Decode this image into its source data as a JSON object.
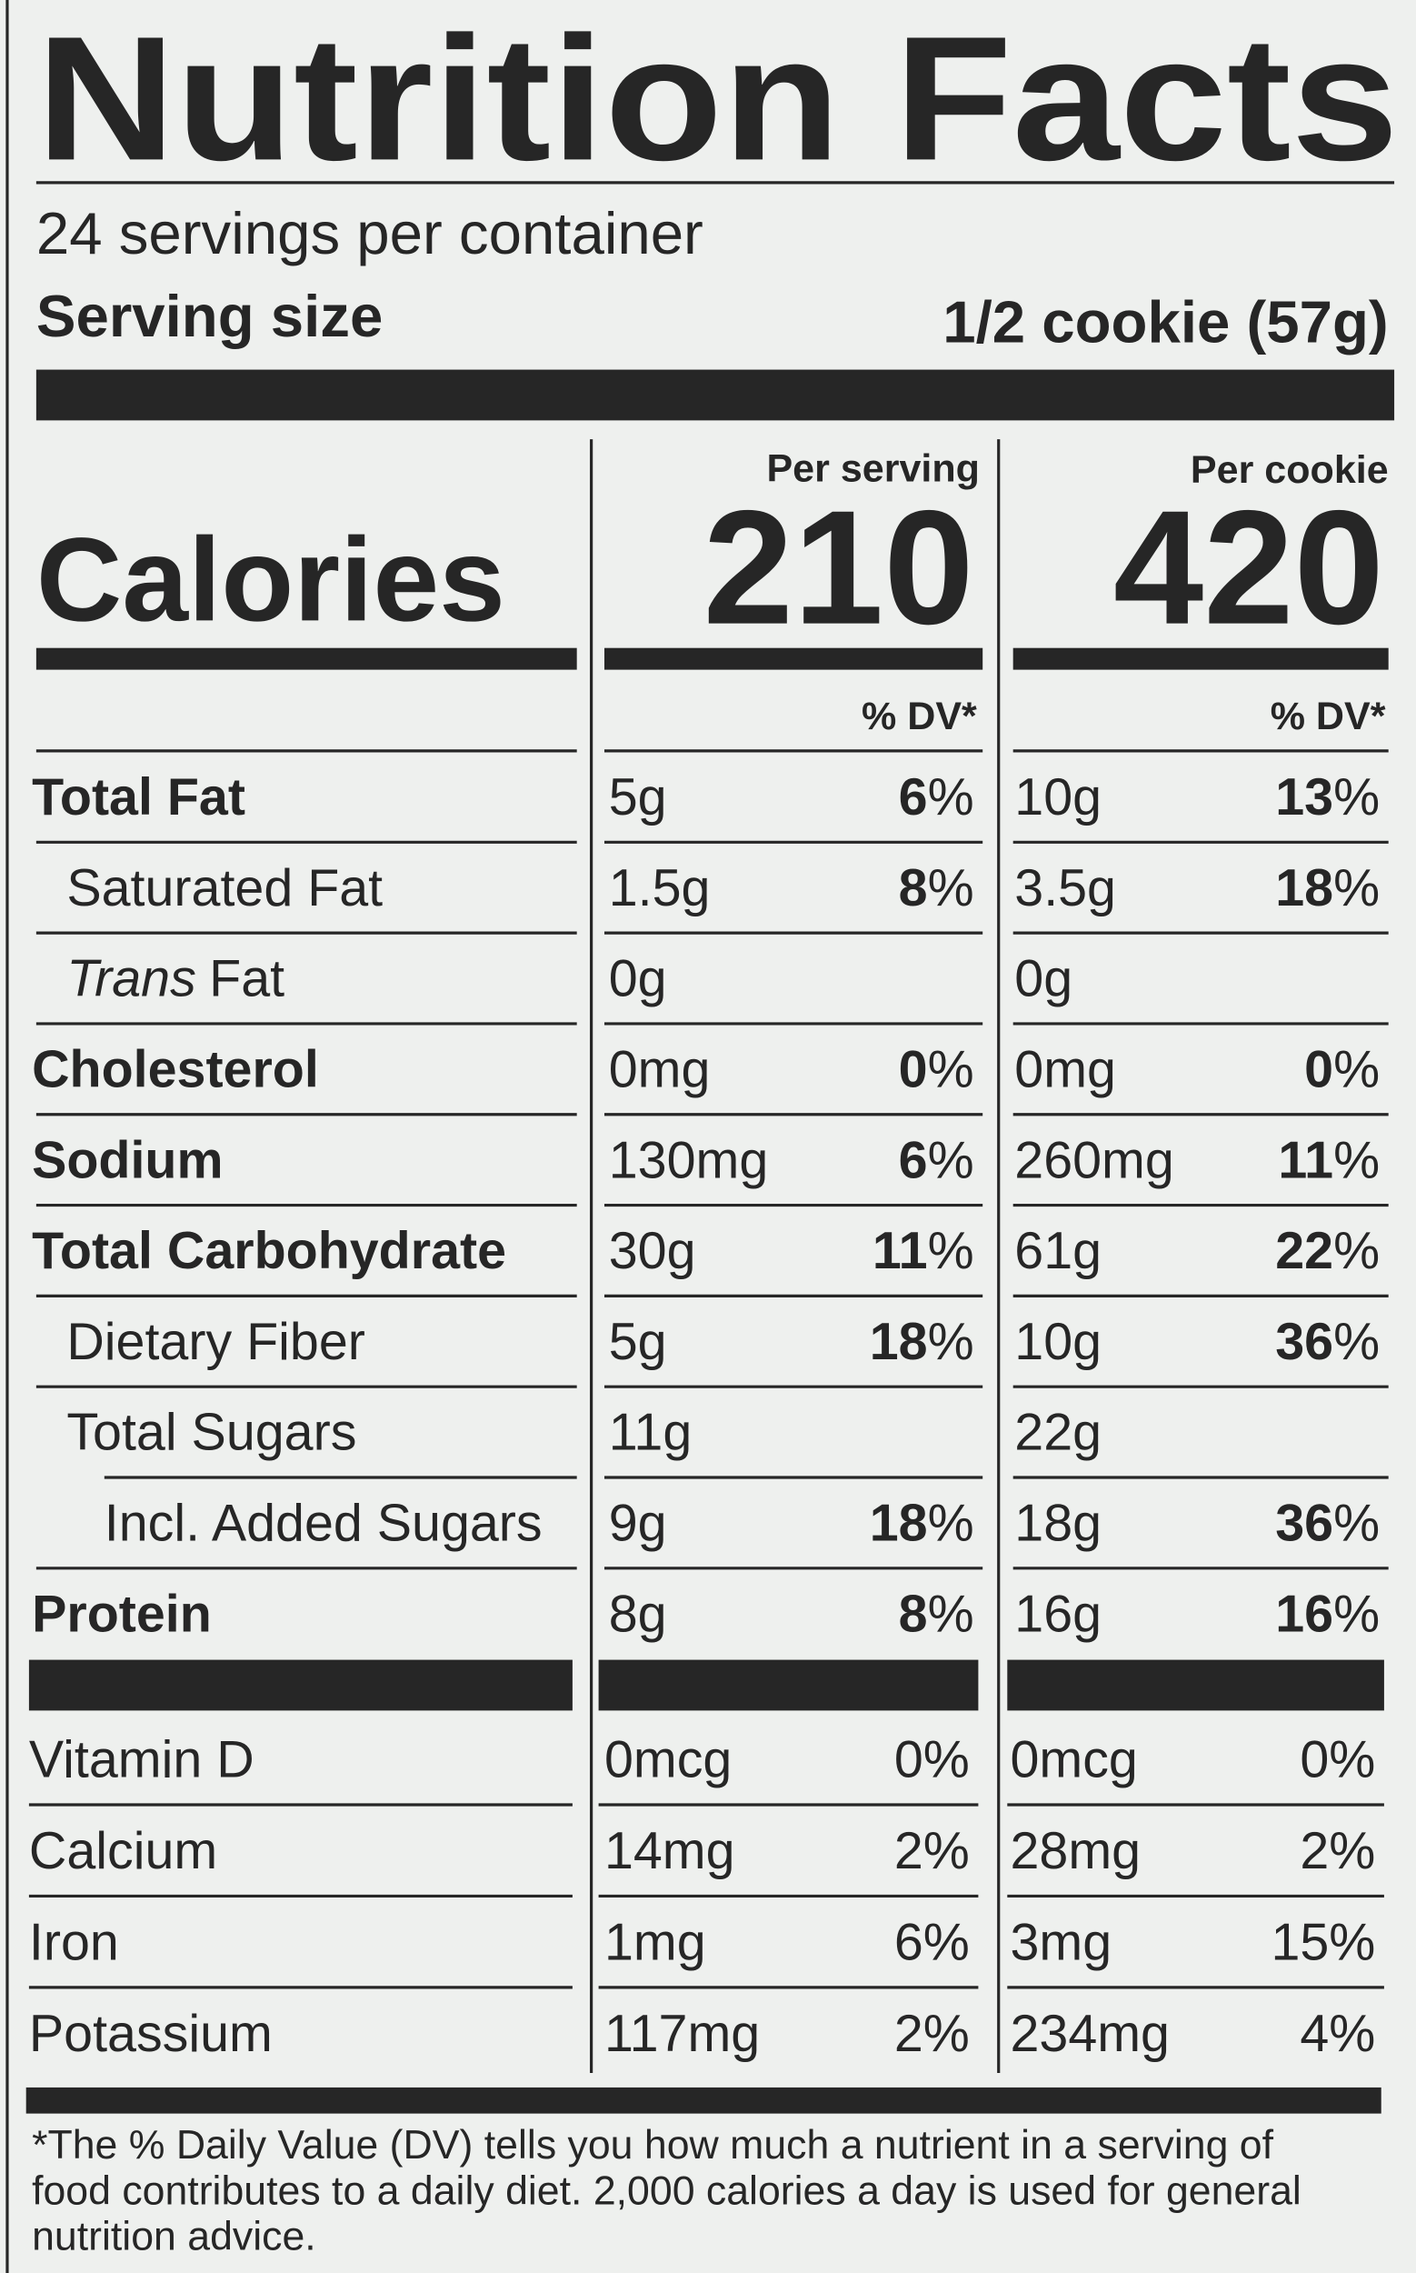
{
  "title": "Nutrition Facts",
  "servings": "24 servings per container",
  "serving_size": {
    "label": "Serving size",
    "value": "1/2 cookie (57g)"
  },
  "calories": {
    "label": "Calories",
    "per_serving": {
      "header": "Per serving",
      "value": "210"
    },
    "per_cookie": {
      "header": "Per cookie",
      "value": "420"
    }
  },
  "dv_header": "% DV*",
  "nutrients": [
    {
      "name": "Total Fat",
      "bold": true,
      "indent": 0,
      "per_serving": {
        "amount": "5g",
        "dv": "6%"
      },
      "per_cookie": {
        "amount": "10g",
        "dv": "13%"
      }
    },
    {
      "name": "Saturated Fat",
      "bold": false,
      "indent": 1,
      "per_serving": {
        "amount": "1.5g",
        "dv": "8%"
      },
      "per_cookie": {
        "amount": "3.5g",
        "dv": "18%"
      }
    },
    {
      "name": [
        {
          "text": "Trans",
          "italic": true
        },
        {
          "text": "Fat",
          "italic": false
        }
      ],
      "bold": false,
      "indent": 1,
      "per_serving": {
        "amount": "0g"
      },
      "per_cookie": {
        "amount": "0g"
      }
    },
    {
      "name": "Cholesterol",
      "bold": true,
      "indent": 0,
      "per_serving": {
        "amount": "0mg",
        "dv": "0%"
      },
      "per_cookie": {
        "amount": "0mg",
        "dv": "0%"
      }
    },
    {
      "name": "Sodium",
      "bold": true,
      "indent": 0,
      "per_serving": {
        "amount": "130mg",
        "dv": "6%"
      },
      "per_cookie": {
        "amount": "260mg",
        "dv": "11%"
      }
    },
    {
      "name": "Total Carbohydrate",
      "bold": true,
      "indent": 0,
      "per_serving": {
        "amount": "30g",
        "dv": "11%"
      },
      "per_cookie": {
        "amount": "61g",
        "dv": "22%"
      }
    },
    {
      "name": "Dietary Fiber",
      "bold": false,
      "indent": 1,
      "per_serving": {
        "amount": "5g",
        "dv": "18%"
      },
      "per_cookie": {
        "amount": "10g",
        "dv": "36%"
      }
    },
    {
      "name": "Total Sugars",
      "bold": false,
      "indent": 1,
      "per_serving": {
        "amount": "11g"
      },
      "per_cookie": {
        "amount": "22g"
      }
    },
    {
      "name": "Incl. Added Sugars",
      "bold": false,
      "indent": 2,
      "per_serving": {
        "amount": "9g",
        "dv": "18%"
      },
      "per_cookie": {
        "amount": "18g",
        "dv": "36%"
      }
    },
    {
      "name": "Protein",
      "bold": true,
      "indent": 0,
      "per_serving": {
        "amount": "8g",
        "dv": "8%"
      },
      "per_cookie": {
        "amount": "16g",
        "dv": "16%"
      }
    }
  ],
  "vitamins": [
    {
      "name": "Vitamin D",
      "per_serving": {
        "amount": "0mcg",
        "dv": "0%"
      },
      "per_cookie": {
        "amount": "0mcg",
        "dv": "0%"
      }
    },
    {
      "name": "Calcium",
      "per_serving": {
        "amount": "14mg",
        "dv": "2%"
      },
      "per_cookie": {
        "amount": "28mg",
        "dv": "2%"
      }
    },
    {
      "name": "Iron",
      "per_serving": {
        "amount": "1mg",
        "dv": "6%"
      },
      "per_cookie": {
        "amount": "3mg",
        "dv": "15%"
      }
    },
    {
      "name": "Potassium",
      "per_serving": {
        "amount": "117mg",
        "dv": "2%"
      },
      "per_cookie": {
        "amount": "234mg",
        "dv": "4%"
      }
    }
  ],
  "footnote": [
    "*The % Daily Value (DV) tells you how much a nutrient in a serving of",
    "food contributes to a daily diet. 2,000 calories a day is used for general",
    "nutrition advice."
  ]
}
